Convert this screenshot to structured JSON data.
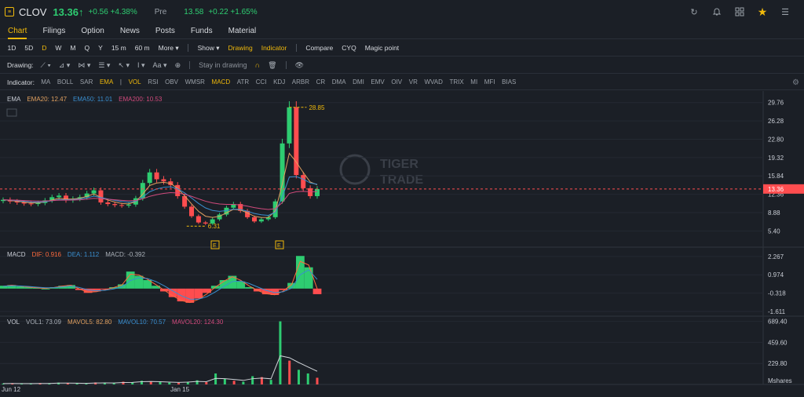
{
  "header": {
    "symbol": "CLOV",
    "price": "13.36",
    "price_arrow": "↑",
    "change": "+0.56 +4.38%",
    "pre_label": "Pre",
    "pre_price": "13.58",
    "pre_change": "+0.22 +1.65%",
    "icons": [
      "refresh-icon",
      "bell-icon",
      "grid-icon",
      "star-icon",
      "menu-icon"
    ]
  },
  "tabs": [
    "Chart",
    "Filings",
    "Option",
    "News",
    "Posts",
    "Funds",
    "Material"
  ],
  "active_tab": "Chart",
  "periods": [
    "1D",
    "5D",
    "D",
    "W",
    "M",
    "Q",
    "Y",
    "15 m",
    "60 m",
    "More"
  ],
  "selected_period": "D",
  "period_toggles": {
    "show": "Show",
    "drawing": "Drawing",
    "indicator": "Indicator"
  },
  "period_tools": [
    "Compare",
    "CYQ",
    "Magic point"
  ],
  "drawing": {
    "label": "Drawing:",
    "aa": "Aa",
    "stay": "Stay in drawing"
  },
  "indicators": {
    "label": "Indicator:",
    "items": [
      "MA",
      "BOLL",
      "SAR",
      "EMA",
      "|",
      "VOL",
      "RSI",
      "OBV",
      "WMSR",
      "MACD",
      "ATR",
      "CCI",
      "KDJ",
      "ARBR",
      "CR",
      "DMA",
      "DMI",
      "EMV",
      "OIV",
      "VR",
      "WVAD",
      "TRIX",
      "MI",
      "MFI",
      "BIAS"
    ],
    "selected": [
      "EMA",
      "VOL",
      "MACD"
    ]
  },
  "ema_legend": {
    "name": "EMA",
    "ema20": "EMA20: 12.47",
    "ema50": "EMA50: 11.01",
    "ema200": "EMA200: 10.53"
  },
  "macd_legend": {
    "name": "MACD",
    "dif": "DIF: 0.916",
    "dea": "DEA: 1.112",
    "macd": "MACD: -0.392"
  },
  "vol_legend": {
    "name": "VOL",
    "vol1": "VOL1: 73.09",
    "mavol5": "MAVOL5: 82.80",
    "mavol10": "MAVOL10: 70.57",
    "mavol20": "MAVOL20: 124.30"
  },
  "price_axis": [
    "29.76",
    "26.28",
    "22.80",
    "19.32",
    "15.84",
    "12.36",
    "8.88",
    "5.40"
  ],
  "current_price_tag": "13.36",
  "high_label": "28.85",
  "low_label": "6.31",
  "earnings_marker": "E",
  "macd_axis": [
    "2.267",
    "0.974",
    "-0.318",
    "-1.611"
  ],
  "vol_axis": [
    "689.40",
    "459.60",
    "229.80"
  ],
  "vol_unit": "Mshares",
  "dates": [
    "Jun 12",
    "Jan 15"
  ],
  "watermark": {
    "line1": "TIGER",
    "line2": "TRADE"
  },
  "colors": {
    "up": "#2ecc71",
    "down": "#ff4d4f",
    "accent": "#f0b90b",
    "ema20": "#e0a060",
    "ema50": "#3a8fd0",
    "ema200": "#d04a7c",
    "dif": "#ff6a3d",
    "dea": "#3a8fd0"
  },
  "chart_data": {
    "type": "candlestick",
    "price_ylim": [
      3.66,
      31.5
    ],
    "close_values": [
      11.3,
      11.0,
      10.8,
      10.6,
      10.5,
      10.7,
      11.2,
      11.8,
      12.1,
      11.2,
      11.5,
      11.8,
      12.5,
      13.1,
      10.8,
      10.5,
      10.3,
      10.2,
      10.4,
      11.6,
      14.5,
      16.5,
      15.2,
      14.8,
      14.1,
      12.0,
      10.0,
      8.2,
      7.0,
      6.8,
      7.6,
      8.5,
      9.8,
      10.5,
      9.2,
      8.0,
      7.2,
      7.6,
      8.0,
      11.0,
      22.0,
      28.85,
      16.0,
      13.5,
      12.0,
      13.36
    ],
    "high_value": 28.85,
    "low_value": 6.31,
    "last_close": 13.36,
    "macd_ylim": [
      -2.0,
      2.7
    ],
    "macd_hist": [
      0.2,
      0.25,
      0.15,
      0.1,
      0.05,
      0.0,
      0.1,
      0.2,
      0.25,
      -0.1,
      -0.3,
      -0.2,
      -0.05,
      0.1,
      0.3,
      1.2,
      0.9,
      0.6,
      0.2,
      -0.2,
      -0.6,
      -0.9,
      -1.0,
      -0.7,
      -0.3,
      0.2,
      0.6,
      0.9,
      0.5,
      0.1,
      -0.2,
      -0.4,
      -0.45,
      -0.1,
      0.4,
      2.3,
      1.5,
      -0.392
    ],
    "vol_ylim": [
      0,
      720
    ],
    "vol_values": [
      10,
      12,
      8,
      9,
      14,
      11,
      20,
      15,
      12,
      10,
      22,
      18,
      14,
      30,
      25,
      40,
      35,
      28,
      20,
      18,
      30,
      45,
      25,
      120,
      60,
      40,
      30,
      90,
      80,
      50,
      689.4,
      260,
      160,
      120,
      73.09
    ]
  }
}
